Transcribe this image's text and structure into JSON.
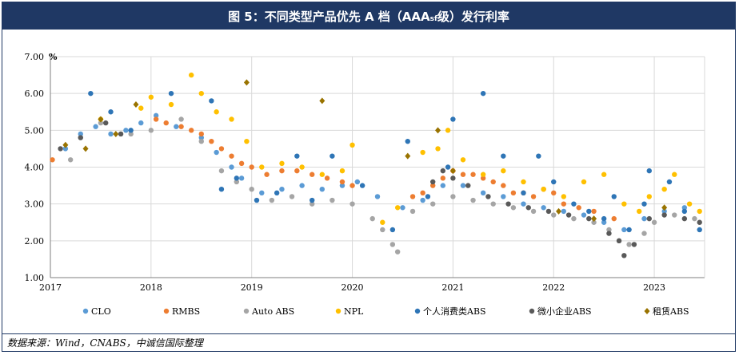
{
  "title": {
    "prefix": "图 5：不同类型产品优先 A 档（AAA",
    "subscript": "sf",
    "suffix": "级）发行利率"
  },
  "source": "数据来源：Wind，CNABS，中诚信国际整理",
  "chart_data": {
    "type": "scatter",
    "ylabel": "%",
    "xlim": [
      2017,
      2023.5
    ],
    "ylim": [
      1.0,
      7.0
    ],
    "x_ticks": [
      2017,
      2018,
      2019,
      2020,
      2021,
      2022,
      2023
    ],
    "x_tick_labels": [
      "2017",
      "2018",
      "2019",
      "2020",
      "2021",
      "2022",
      "2023"
    ],
    "y_ticks": [
      1.0,
      2.0,
      3.0,
      4.0,
      5.0,
      6.0,
      7.0
    ],
    "y_tick_labels": [
      "1.00",
      "2.00",
      "3.00",
      "4.00",
      "5.00",
      "6.00",
      "7.00"
    ],
    "legend_position": "bottom",
    "series": [
      {
        "name": "CLO",
        "color": "#5b9bd5",
        "marker": "circle",
        "points": [
          [
            2017.15,
            4.5
          ],
          [
            2017.3,
            4.9
          ],
          [
            2017.45,
            5.1
          ],
          [
            2017.6,
            4.9
          ],
          [
            2017.75,
            5.0
          ],
          [
            2017.9,
            5.2
          ],
          [
            2018.05,
            5.4
          ],
          [
            2018.25,
            5.1
          ],
          [
            2018.5,
            4.8
          ],
          [
            2018.65,
            4.4
          ],
          [
            2018.8,
            4.0
          ],
          [
            2018.9,
            3.7
          ],
          [
            2019.1,
            3.3
          ],
          [
            2019.3,
            3.4
          ],
          [
            2019.5,
            3.5
          ],
          [
            2019.7,
            3.4
          ],
          [
            2019.9,
            3.5
          ],
          [
            2020.05,
            3.6
          ],
          [
            2020.25,
            3.2
          ],
          [
            2020.5,
            2.9
          ],
          [
            2020.7,
            3.1
          ],
          [
            2020.9,
            3.5
          ],
          [
            2021.1,
            3.5
          ],
          [
            2021.3,
            3.3
          ],
          [
            2021.5,
            3.2
          ],
          [
            2021.7,
            3.0
          ],
          [
            2021.9,
            2.9
          ],
          [
            2022.1,
            2.8
          ],
          [
            2022.3,
            2.7
          ],
          [
            2022.5,
            2.5
          ],
          [
            2022.7,
            2.3
          ],
          [
            2022.9,
            2.6
          ],
          [
            2023.1,
            2.8
          ],
          [
            2023.3,
            2.9
          ]
        ]
      },
      {
        "name": "RMBS",
        "color": "#ed7d31",
        "marker": "circle",
        "points": [
          [
            2017.02,
            4.2
          ],
          [
            2018.05,
            5.3
          ],
          [
            2018.15,
            5.2
          ],
          [
            2018.3,
            5.1
          ],
          [
            2018.4,
            5.0
          ],
          [
            2018.5,
            4.9
          ],
          [
            2018.6,
            4.7
          ],
          [
            2018.7,
            4.5
          ],
          [
            2018.8,
            4.3
          ],
          [
            2018.9,
            4.1
          ],
          [
            2019.0,
            4.0
          ],
          [
            2019.15,
            3.8
          ],
          [
            2019.3,
            3.9
          ],
          [
            2019.45,
            3.9
          ],
          [
            2019.6,
            3.8
          ],
          [
            2019.75,
            3.7
          ],
          [
            2019.9,
            3.6
          ],
          [
            2020.0,
            3.5
          ],
          [
            2020.6,
            3.2
          ],
          [
            2020.7,
            3.3
          ],
          [
            2020.8,
            3.5
          ],
          [
            2020.9,
            3.7
          ],
          [
            2021.0,
            3.9
          ],
          [
            2021.1,
            3.8
          ],
          [
            2021.2,
            3.8
          ],
          [
            2021.3,
            3.7
          ],
          [
            2021.4,
            3.6
          ],
          [
            2021.5,
            3.5
          ],
          [
            2021.6,
            3.3
          ],
          [
            2021.7,
            3.3
          ],
          [
            2021.8,
            3.2
          ],
          [
            2021.9,
            3.4
          ],
          [
            2022.0,
            3.3
          ],
          [
            2022.1,
            3.0
          ],
          [
            2022.25,
            2.9
          ],
          [
            2022.4,
            2.8
          ],
          [
            2022.6,
            2.6
          ]
        ]
      },
      {
        "name": "Auto ABS",
        "color": "#a5a5a5",
        "marker": "circle",
        "points": [
          [
            2017.2,
            4.2
          ],
          [
            2017.5,
            5.2
          ],
          [
            2017.8,
            4.9
          ],
          [
            2018.0,
            5.0
          ],
          [
            2018.3,
            5.3
          ],
          [
            2018.5,
            4.7
          ],
          [
            2018.7,
            3.9
          ],
          [
            2018.85,
            3.6
          ],
          [
            2019.0,
            3.4
          ],
          [
            2019.2,
            3.1
          ],
          [
            2019.4,
            3.2
          ],
          [
            2019.6,
            3.0
          ],
          [
            2019.8,
            3.1
          ],
          [
            2020.0,
            3.0
          ],
          [
            2020.2,
            2.6
          ],
          [
            2020.3,
            2.3
          ],
          [
            2020.4,
            1.9
          ],
          [
            2020.45,
            1.7
          ],
          [
            2020.6,
            2.8
          ],
          [
            2020.8,
            3.0
          ],
          [
            2021.0,
            3.2
          ],
          [
            2021.2,
            3.1
          ],
          [
            2021.4,
            3.0
          ],
          [
            2021.6,
            2.9
          ],
          [
            2021.8,
            2.8
          ],
          [
            2022.0,
            2.7
          ],
          [
            2022.2,
            2.6
          ],
          [
            2022.4,
            2.5
          ],
          [
            2022.55,
            2.3
          ],
          [
            2022.65,
            2.0
          ],
          [
            2022.75,
            1.9
          ],
          [
            2022.9,
            2.2
          ],
          [
            2023.0,
            2.5
          ],
          [
            2023.2,
            2.7
          ],
          [
            2023.4,
            2.6
          ]
        ]
      },
      {
        "name": "NPL",
        "color": "#ffc000",
        "marker": "circle",
        "points": [
          [
            2017.5,
            5.3
          ],
          [
            2017.9,
            5.6
          ],
          [
            2018.0,
            5.9
          ],
          [
            2018.2,
            5.7
          ],
          [
            2018.4,
            6.5
          ],
          [
            2018.5,
            6.0
          ],
          [
            2018.65,
            5.5
          ],
          [
            2018.8,
            5.3
          ],
          [
            2018.95,
            4.7
          ],
          [
            2019.1,
            4.0
          ],
          [
            2019.3,
            4.1
          ],
          [
            2019.5,
            4.0
          ],
          [
            2019.7,
            3.8
          ],
          [
            2019.9,
            3.9
          ],
          [
            2020.0,
            4.6
          ],
          [
            2020.3,
            2.5
          ],
          [
            2020.45,
            2.9
          ],
          [
            2020.7,
            4.4
          ],
          [
            2020.85,
            4.5
          ],
          [
            2020.95,
            5.0
          ],
          [
            2021.1,
            4.2
          ],
          [
            2021.3,
            3.8
          ],
          [
            2021.5,
            3.9
          ],
          [
            2021.7,
            3.6
          ],
          [
            2021.9,
            3.4
          ],
          [
            2022.1,
            3.2
          ],
          [
            2022.3,
            3.6
          ],
          [
            2022.5,
            3.8
          ],
          [
            2022.7,
            3.0
          ],
          [
            2022.85,
            2.8
          ],
          [
            2022.95,
            3.2
          ],
          [
            2023.1,
            3.4
          ],
          [
            2023.2,
            3.8
          ],
          [
            2023.35,
            3.0
          ],
          [
            2023.45,
            2.8
          ]
        ]
      },
      {
        "name": "个人消费类ABS",
        "color": "#2e75b6",
        "marker": "circle",
        "points": [
          [
            2017.4,
            6.0
          ],
          [
            2017.6,
            5.5
          ],
          [
            2017.8,
            5.0
          ],
          [
            2018.2,
            6.0
          ],
          [
            2018.6,
            5.8
          ],
          [
            2018.7,
            3.4
          ],
          [
            2018.85,
            3.7
          ],
          [
            2019.05,
            3.1
          ],
          [
            2019.25,
            3.3
          ],
          [
            2019.45,
            4.3
          ],
          [
            2019.6,
            3.1
          ],
          [
            2019.8,
            4.3
          ],
          [
            2020.1,
            3.5
          ],
          [
            2020.4,
            2.3
          ],
          [
            2020.55,
            4.7
          ],
          [
            2020.75,
            3.2
          ],
          [
            2020.95,
            4.0
          ],
          [
            2021.0,
            5.3
          ],
          [
            2021.3,
            6.0
          ],
          [
            2021.5,
            4.3
          ],
          [
            2021.7,
            3.3
          ],
          [
            2021.85,
            4.3
          ],
          [
            2022.0,
            3.6
          ],
          [
            2022.2,
            3.0
          ],
          [
            2022.35,
            2.8
          ],
          [
            2022.5,
            2.6
          ],
          [
            2022.6,
            3.2
          ],
          [
            2022.75,
            2.3
          ],
          [
            2022.9,
            3.0
          ],
          [
            2022.95,
            3.9
          ],
          [
            2023.15,
            3.6
          ],
          [
            2023.3,
            2.8
          ],
          [
            2023.45,
            2.3
          ]
        ]
      },
      {
        "name": "微小企业ABS",
        "color": "#595959",
        "marker": "circle",
        "points": [
          [
            2017.1,
            4.5
          ],
          [
            2017.3,
            4.8
          ],
          [
            2017.55,
            5.2
          ],
          [
            2017.7,
            4.9
          ],
          [
            2020.8,
            3.6
          ],
          [
            2020.9,
            3.9
          ],
          [
            2021.0,
            3.7
          ],
          [
            2021.15,
            3.5
          ],
          [
            2021.35,
            3.2
          ],
          [
            2021.55,
            3.0
          ],
          [
            2021.75,
            2.9
          ],
          [
            2021.95,
            2.8
          ],
          [
            2022.15,
            2.7
          ],
          [
            2022.35,
            2.6
          ],
          [
            2022.55,
            2.2
          ],
          [
            2022.65,
            2.0
          ],
          [
            2022.7,
            1.6
          ],
          [
            2022.8,
            1.9
          ],
          [
            2022.95,
            2.6
          ],
          [
            2023.1,
            2.7
          ],
          [
            2023.3,
            2.6
          ],
          [
            2023.45,
            2.5
          ]
        ]
      },
      {
        "name": "租赁ABS",
        "color": "#997300",
        "marker": "diamond",
        "points": [
          [
            2017.15,
            4.6
          ],
          [
            2017.35,
            4.5
          ],
          [
            2017.5,
            5.3
          ],
          [
            2017.65,
            4.9
          ],
          [
            2017.85,
            5.7
          ],
          [
            2018.95,
            6.3
          ],
          [
            2019.7,
            5.8
          ],
          [
            2020.55,
            4.3
          ],
          [
            2020.85,
            5.0
          ],
          [
            2021.0,
            3.9
          ],
          [
            2022.05,
            2.8
          ],
          [
            2022.4,
            2.6
          ],
          [
            2023.1,
            2.9
          ]
        ]
      }
    ]
  }
}
